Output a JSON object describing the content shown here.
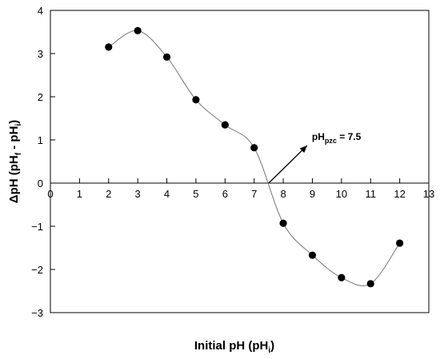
{
  "chart_data": {
    "type": "scatter",
    "xlabel": {
      "main": "Initial pH (pH",
      "sub": "i",
      "end": ")"
    },
    "ylabel": {
      "main": "ΔpH (pH",
      "sub1": "f",
      "mid": " - pH",
      "sub2": "i",
      "end": ")"
    },
    "xlim": [
      0,
      13
    ],
    "ylim": [
      -3,
      4
    ],
    "x_ticks": [
      "0",
      "1",
      "2",
      "3",
      "4",
      "5",
      "6",
      "7",
      "8",
      "9",
      "10",
      "11",
      "12",
      "13"
    ],
    "y_ticks": [
      "4",
      "3",
      "2",
      "1",
      "0",
      "−1",
      "−2",
      "−3"
    ],
    "grid": false,
    "series": [
      {
        "x": [
          2,
          3,
          4,
          5,
          6,
          7,
          8,
          9,
          10,
          11,
          12
        ],
        "y": [
          3.15,
          3.53,
          2.92,
          1.93,
          1.35,
          0.82,
          -0.93,
          -1.67,
          -2.19,
          -2.33,
          -1.39
        ],
        "marker": "filled-circle",
        "fit_line": "smooth"
      }
    ],
    "annotation": {
      "main": "pH",
      "sub": "pzc",
      "value": " = 7.5",
      "point": [
        7.5,
        0
      ]
    }
  }
}
